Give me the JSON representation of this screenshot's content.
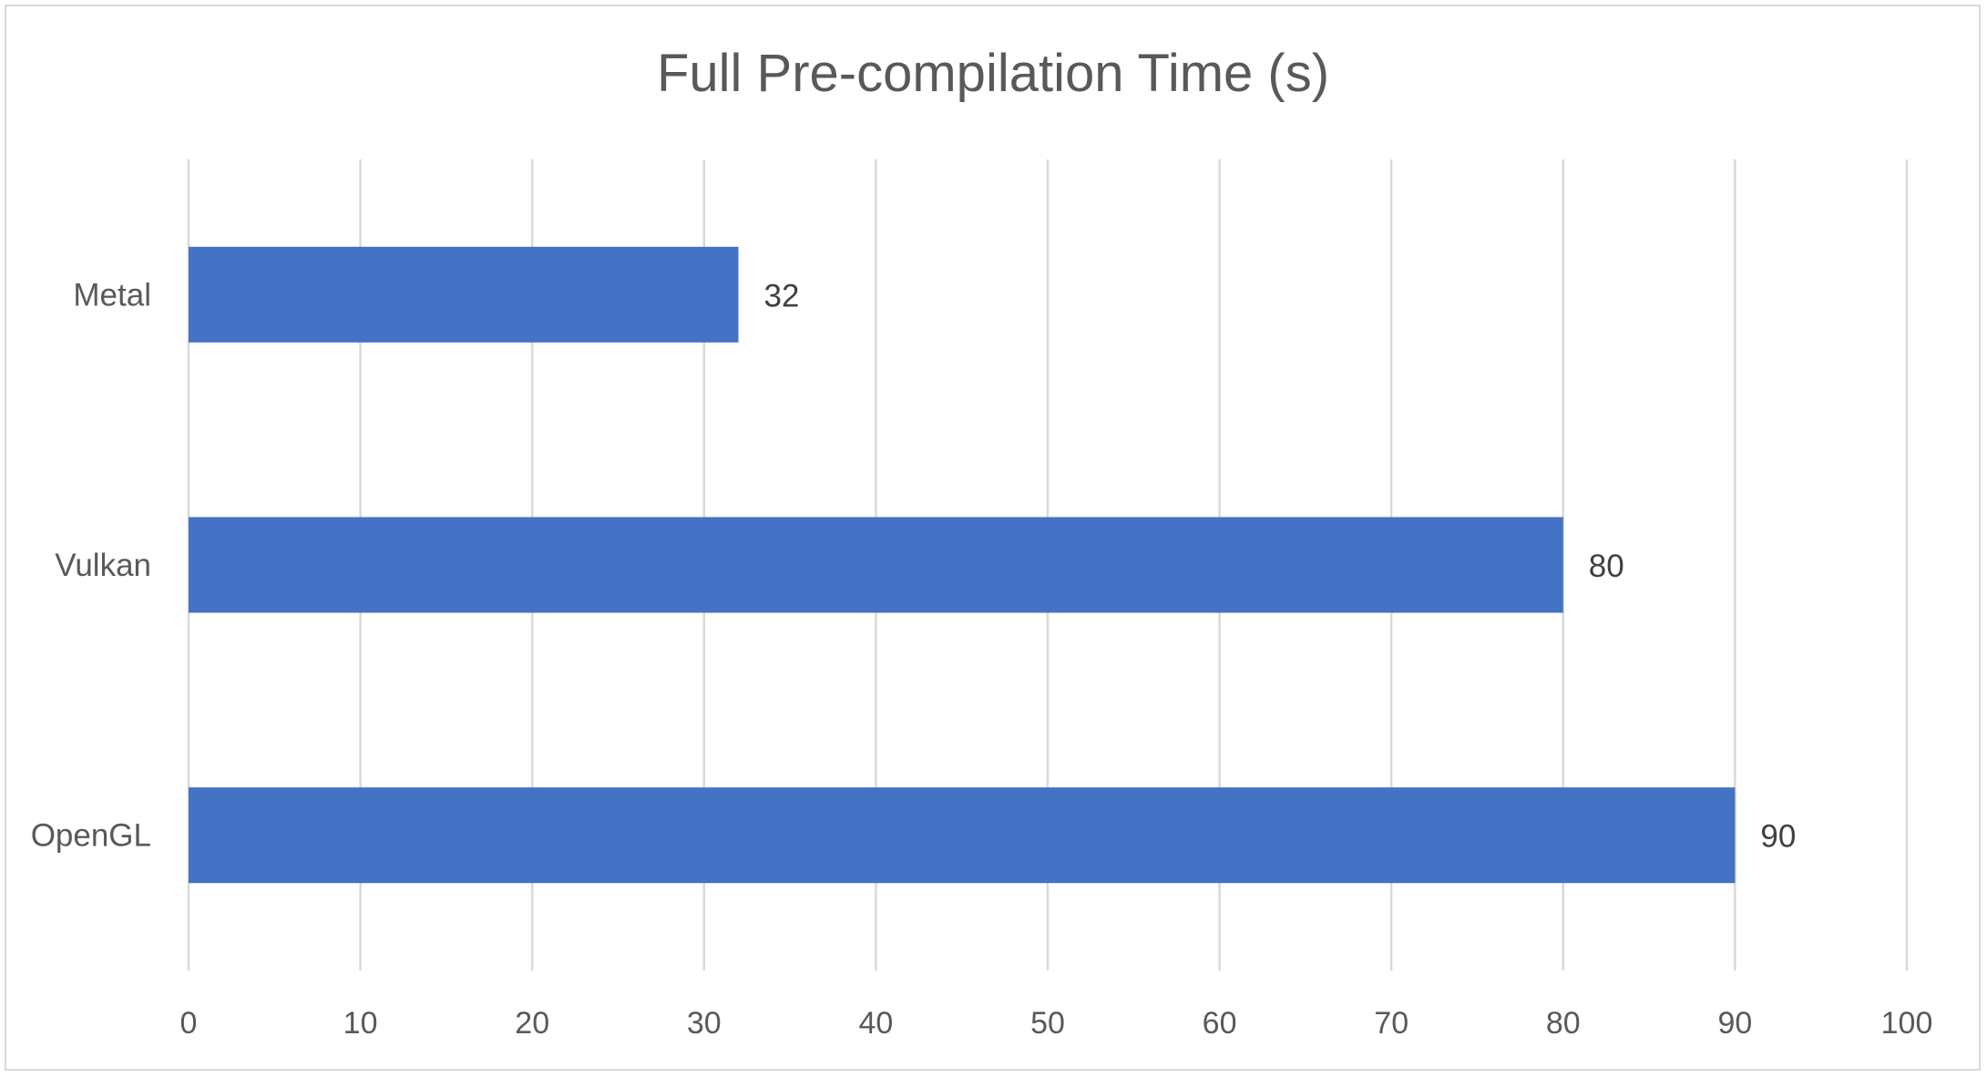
{
  "chart_data": {
    "type": "bar",
    "orientation": "horizontal",
    "title": "Full Pre-compilation Time (s)",
    "xlabel": "",
    "ylabel": "",
    "categories": [
      "Metal",
      "Vulkan",
      "OpenGL"
    ],
    "values": [
      32,
      80,
      90
    ],
    "data_labels": [
      "32",
      "80",
      "90"
    ],
    "xlim": [
      0,
      100
    ],
    "x_ticks": [
      "0",
      "10",
      "20",
      "30",
      "40",
      "50",
      "60",
      "70",
      "80",
      "90",
      "100"
    ],
    "grid": "vertical",
    "legend": "none",
    "colors": {
      "bar": "#4472C4",
      "grid": "#d9d9d9",
      "text": "#595959",
      "data_label": "#404040"
    }
  }
}
